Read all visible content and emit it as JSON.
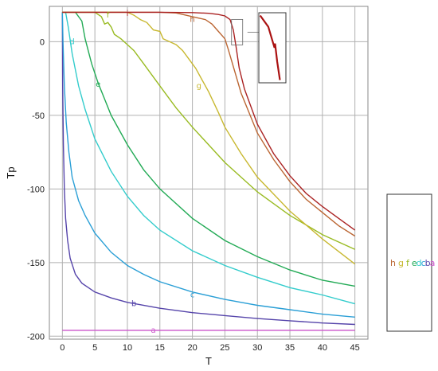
{
  "chart_data": {
    "type": "line",
    "xlabel": "T",
    "ylabel": "Tp",
    "xlim": [
      -2,
      47
    ],
    "ylim": [
      -202,
      24
    ],
    "xticks": [
      0,
      5,
      10,
      15,
      20,
      25,
      30,
      35,
      40,
      45
    ],
    "yticks": [
      0,
      -50,
      -100,
      -150,
      -200
    ],
    "grid": true,
    "legend_position": "right",
    "legend_text": "h g f e d c b a",
    "series": [
      {
        "name": "a",
        "color": "#cc55cc",
        "label_at": [
          14,
          -196
        ],
        "points": [
          [
            0,
            -196
          ],
          [
            45,
            -196
          ]
        ]
      },
      {
        "name": "b",
        "color": "#5544aa",
        "label_at": [
          11,
          -178
        ],
        "points": [
          [
            0,
            20
          ],
          [
            0.05,
            -30
          ],
          [
            0.15,
            -70
          ],
          [
            0.3,
            -100
          ],
          [
            0.5,
            -120
          ],
          [
            0.8,
            -135
          ],
          [
            1.2,
            -147
          ],
          [
            2,
            -158
          ],
          [
            3,
            -164
          ],
          [
            5,
            -170
          ],
          [
            7.5,
            -174
          ],
          [
            10,
            -177
          ],
          [
            15,
            -181
          ],
          [
            20,
            -184
          ],
          [
            25,
            -186
          ],
          [
            30,
            -188
          ],
          [
            35,
            -189.5
          ],
          [
            40,
            -191
          ],
          [
            45,
            -192
          ]
        ]
      },
      {
        "name": "c",
        "color": "#2a9fd6",
        "label_at": [
          20,
          -172
        ],
        "points": [
          [
            0,
            20
          ],
          [
            0.1,
            0
          ],
          [
            0.3,
            -30
          ],
          [
            0.6,
            -55
          ],
          [
            1,
            -75
          ],
          [
            1.5,
            -92
          ],
          [
            2.5,
            -108
          ],
          [
            3.5,
            -118
          ],
          [
            5,
            -130
          ],
          [
            7.5,
            -143
          ],
          [
            10,
            -152
          ],
          [
            12.5,
            -158
          ],
          [
            15,
            -163
          ],
          [
            20,
            -170
          ],
          [
            25,
            -175
          ],
          [
            30,
            -179
          ],
          [
            35,
            -182
          ],
          [
            40,
            -185
          ],
          [
            45,
            -187
          ]
        ]
      },
      {
        "name": "d",
        "color": "#33cccc",
        "label_at": [
          1.5,
          0
        ],
        "points": [
          [
            0,
            20
          ],
          [
            0.5,
            20
          ],
          [
            0.9,
            10
          ],
          [
            1.5,
            -8
          ],
          [
            2.5,
            -30
          ],
          [
            3.5,
            -46
          ],
          [
            5,
            -66
          ],
          [
            7.5,
            -88
          ],
          [
            10,
            -105
          ],
          [
            12.5,
            -118
          ],
          [
            15,
            -128
          ],
          [
            20,
            -142
          ],
          [
            25,
            -152
          ],
          [
            30,
            -160
          ],
          [
            35,
            -167
          ],
          [
            40,
            -172
          ],
          [
            45,
            -178
          ]
        ]
      },
      {
        "name": "e",
        "color": "#22aa55",
        "label_at": [
          5.5,
          -29
        ],
        "points": [
          [
            0,
            20
          ],
          [
            2,
            20
          ],
          [
            3,
            14
          ],
          [
            3.5,
            2
          ],
          [
            4.5,
            -15
          ],
          [
            5.5,
            -28
          ],
          [
            7.5,
            -50
          ],
          [
            10,
            -70
          ],
          [
            12.5,
            -87
          ],
          [
            15,
            -100
          ],
          [
            20,
            -120
          ],
          [
            25,
            -135
          ],
          [
            30,
            -146
          ],
          [
            35,
            -155
          ],
          [
            40,
            -162
          ],
          [
            45,
            -166
          ]
        ]
      },
      {
        "name": "f",
        "color": "#99bb22",
        "label_at": [
          7,
          18
        ],
        "points": [
          [
            0,
            20
          ],
          [
            5,
            20
          ],
          [
            6,
            17
          ],
          [
            6.5,
            12
          ],
          [
            7,
            13
          ],
          [
            7.5,
            10
          ],
          [
            8,
            5
          ],
          [
            9,
            2
          ],
          [
            10,
            -2
          ],
          [
            11,
            -6
          ],
          [
            12.5,
            -15
          ],
          [
            15,
            -30
          ],
          [
            17.5,
            -45
          ],
          [
            20,
            -58
          ],
          [
            25,
            -82
          ],
          [
            30,
            -102
          ],
          [
            35,
            -118
          ],
          [
            40,
            -131
          ],
          [
            45,
            -141
          ]
        ]
      },
      {
        "name": "g",
        "color": "#c8b830",
        "label_at": [
          21,
          -30
        ],
        "points": [
          [
            0,
            20
          ],
          [
            10,
            20
          ],
          [
            11,
            18
          ],
          [
            12,
            15
          ],
          [
            13,
            13
          ],
          [
            14,
            8
          ],
          [
            15,
            7
          ],
          [
            15.5,
            2
          ],
          [
            16.5,
            0
          ],
          [
            17.5,
            -2
          ],
          [
            18.5,
            -6
          ],
          [
            19.5,
            -12
          ],
          [
            20.5,
            -18
          ],
          [
            21.5,
            -26
          ],
          [
            22.5,
            -34
          ],
          [
            24,
            -48
          ],
          [
            25,
            -58
          ],
          [
            27.5,
            -76
          ],
          [
            30,
            -92
          ],
          [
            35,
            -115
          ],
          [
            40,
            -134
          ],
          [
            45,
            -151
          ]
        ]
      },
      {
        "name": "h",
        "color": "#bb6633",
        "label_at": [
          20,
          15
        ],
        "points": [
          [
            0,
            20
          ],
          [
            15,
            20
          ],
          [
            17.5,
            19.5
          ],
          [
            19,
            18
          ],
          [
            20,
            17
          ],
          [
            21,
            16
          ],
          [
            22,
            15
          ],
          [
            23,
            12
          ],
          [
            24,
            7
          ],
          [
            25,
            2
          ],
          [
            25.5,
            -5
          ],
          [
            26.5,
            -20
          ],
          [
            27.5,
            -35
          ],
          [
            30,
            -62
          ],
          [
            32.5,
            -80
          ],
          [
            35,
            -95
          ],
          [
            37.5,
            -107
          ],
          [
            40,
            -116
          ],
          [
            42.5,
            -125
          ],
          [
            45,
            -132
          ]
        ]
      },
      {
        "name": "i",
        "color": "#aa2222",
        "label_at": [
          10,
          19
        ],
        "points": [
          [
            0,
            20
          ],
          [
            15,
            20
          ],
          [
            20,
            19.8
          ],
          [
            22.5,
            19.3
          ],
          [
            24,
            18.5
          ],
          [
            25,
            17.5
          ],
          [
            25.8,
            15
          ],
          [
            26.3,
            8
          ],
          [
            26.7,
            -3
          ],
          [
            27.2,
            -18
          ],
          [
            28,
            -32
          ],
          [
            30,
            -56
          ],
          [
            32.5,
            -76
          ],
          [
            35,
            -91
          ],
          [
            37.5,
            -103
          ],
          [
            40,
            -112
          ],
          [
            42.5,
            -120
          ],
          [
            45,
            -128
          ]
        ]
      }
    ],
    "inset": {
      "arrow_from": [
        27,
        0
      ],
      "points": [
        [
          0.05,
          0.96
        ],
        [
          0.35,
          0.8
        ],
        [
          0.58,
          0.5
        ],
        [
          0.6,
          0.56
        ],
        [
          0.68,
          0.3
        ],
        [
          0.78,
          0.04
        ]
      ],
      "color": "#aa1111"
    }
  }
}
